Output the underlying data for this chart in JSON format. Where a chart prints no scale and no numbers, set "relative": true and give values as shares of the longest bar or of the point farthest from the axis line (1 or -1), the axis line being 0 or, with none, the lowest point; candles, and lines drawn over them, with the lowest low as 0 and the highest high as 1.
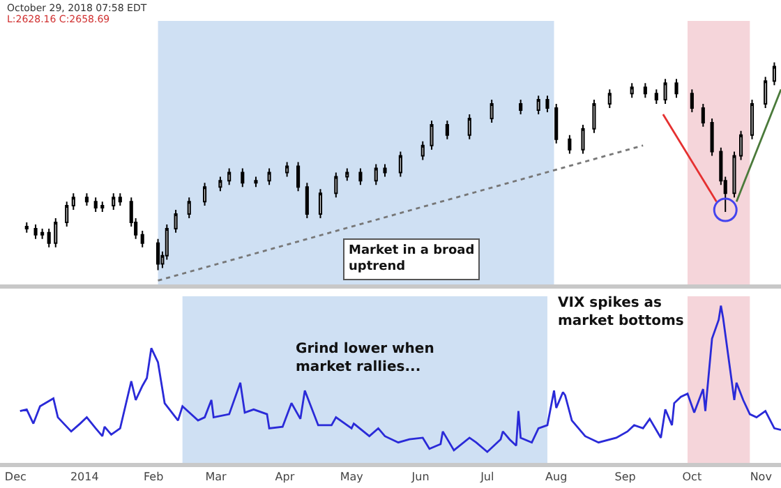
{
  "chart_data": [
    {
      "type": "candlestick",
      "relative": true,
      "color": "#000000",
      "tick_labels": false,
      "xlim": [
        "2013-11-24",
        "2014-11-10"
      ],
      "x": [
        "2013-12-06",
        "2013-12-10",
        "2013-12-13",
        "2013-12-16",
        "2013-12-19",
        "2013-12-24",
        "2013-12-27",
        "2014-01-02",
        "2014-01-06",
        "2014-01-09",
        "2014-01-14",
        "2014-01-17",
        "2014-01-22",
        "2014-01-24",
        "2014-01-27",
        "2014-02-03",
        "2014-02-05",
        "2014-02-07",
        "2014-02-11",
        "2014-02-17",
        "2014-02-24",
        "2014-03-03",
        "2014-03-07",
        "2014-03-13",
        "2014-03-19",
        "2014-03-25",
        "2014-04-02",
        "2014-04-07",
        "2014-04-11",
        "2014-04-17",
        "2014-04-24",
        "2014-04-29",
        "2014-05-05",
        "2014-05-12",
        "2014-05-16",
        "2014-05-23",
        "2014-06-02",
        "2014-06-06",
        "2014-06-13",
        "2014-06-23",
        "2014-07-03",
        "2014-07-16",
        "2014-07-24",
        "2014-07-28",
        "2014-08-01",
        "2014-08-07",
        "2014-08-13",
        "2014-08-18",
        "2014-08-25",
        "2014-09-04",
        "2014-09-10",
        "2014-09-15",
        "2014-09-19",
        "2014-09-24",
        "2014-10-01",
        "2014-10-06",
        "2014-10-10",
        "2014-10-14",
        "2014-10-16",
        "2014-10-20",
        "2014-10-23",
        "2014-10-28",
        "2014-11-03",
        "2014-11-07"
      ],
      "ohlc": [
        [
          0.21,
          0.23,
          0.18,
          0.2
        ],
        [
          0.2,
          0.22,
          0.15,
          0.17
        ],
        [
          0.17,
          0.2,
          0.15,
          0.18
        ],
        [
          0.18,
          0.2,
          0.11,
          0.13
        ],
        [
          0.13,
          0.25,
          0.11,
          0.23
        ],
        [
          0.23,
          0.33,
          0.21,
          0.31
        ],
        [
          0.31,
          0.37,
          0.29,
          0.35
        ],
        [
          0.35,
          0.37,
          0.31,
          0.33
        ],
        [
          0.33,
          0.35,
          0.28,
          0.3
        ],
        [
          0.3,
          0.33,
          0.28,
          0.31
        ],
        [
          0.31,
          0.37,
          0.29,
          0.35
        ],
        [
          0.35,
          0.37,
          0.31,
          0.33
        ],
        [
          0.33,
          0.35,
          0.21,
          0.23
        ],
        [
          0.23,
          0.25,
          0.15,
          0.17
        ],
        [
          0.17,
          0.19,
          0.11,
          0.13
        ],
        [
          0.13,
          0.15,
          0,
          0.03
        ],
        [
          0.03,
          0.09,
          0.01,
          0.07
        ],
        [
          0.07,
          0.22,
          0.05,
          0.2
        ],
        [
          0.2,
          0.29,
          0.18,
          0.27
        ],
        [
          0.27,
          0.35,
          0.25,
          0.33
        ],
        [
          0.33,
          0.42,
          0.31,
          0.4
        ],
        [
          0.4,
          0.45,
          0.38,
          0.43
        ],
        [
          0.43,
          0.49,
          0.41,
          0.47
        ],
        [
          0.47,
          0.49,
          0.4,
          0.42
        ],
        [
          0.42,
          0.45,
          0.4,
          0.43
        ],
        [
          0.43,
          0.49,
          0.41,
          0.47
        ],
        [
          0.47,
          0.52,
          0.45,
          0.5
        ],
        [
          0.5,
          0.52,
          0.38,
          0.4
        ],
        [
          0.4,
          0.42,
          0.25,
          0.27
        ],
        [
          0.27,
          0.39,
          0.25,
          0.37
        ],
        [
          0.37,
          0.47,
          0.35,
          0.45
        ],
        [
          0.45,
          0.49,
          0.43,
          0.47
        ],
        [
          0.47,
          0.49,
          0.41,
          0.43
        ],
        [
          0.43,
          0.51,
          0.41,
          0.49
        ],
        [
          0.49,
          0.51,
          0.45,
          0.47
        ],
        [
          0.47,
          0.57,
          0.45,
          0.55
        ],
        [
          0.55,
          0.62,
          0.53,
          0.6
        ],
        [
          0.6,
          0.72,
          0.58,
          0.7
        ],
        [
          0.7,
          0.72,
          0.63,
          0.65
        ],
        [
          0.65,
          0.75,
          0.63,
          0.73
        ],
        [
          0.73,
          0.82,
          0.71,
          0.8
        ],
        [
          0.8,
          0.82,
          0.75,
          0.77
        ],
        [
          0.77,
          0.84,
          0.75,
          0.82
        ],
        [
          0.82,
          0.84,
          0.76,
          0.78
        ],
        [
          0.78,
          0.8,
          0.61,
          0.63
        ],
        [
          0.63,
          0.65,
          0.56,
          0.58
        ],
        [
          0.58,
          0.7,
          0.56,
          0.68
        ],
        [
          0.68,
          0.82,
          0.66,
          0.8
        ],
        [
          0.8,
          0.87,
          0.78,
          0.85
        ],
        [
          0.85,
          0.9,
          0.83,
          0.88
        ],
        [
          0.88,
          0.9,
          0.83,
          0.85
        ],
        [
          0.85,
          0.87,
          0.8,
          0.82
        ],
        [
          0.82,
          0.92,
          0.8,
          0.9
        ],
        [
          0.9,
          0.92,
          0.83,
          0.85
        ],
        [
          0.85,
          0.87,
          0.76,
          0.78
        ],
        [
          0.78,
          0.8,
          0.69,
          0.71
        ],
        [
          0.71,
          0.73,
          0.55,
          0.57
        ],
        [
          0.57,
          0.59,
          0.41,
          0.43
        ],
        [
          0.43,
          0.45,
          0.28,
          0.37
        ],
        [
          0.37,
          0.57,
          0.35,
          0.55
        ],
        [
          0.55,
          0.67,
          0.53,
          0.65
        ],
        [
          0.65,
          0.82,
          0.63,
          0.8
        ],
        [
          0.8,
          0.93,
          0.78,
          0.91
        ],
        [
          0.91,
          1,
          0.89,
          0.98
        ]
      ],
      "series": [
        {
          "type": "line",
          "color": "#777777",
          "line_style": "dotted",
          "x": [
            "2014-02-03",
            "2014-09-09"
          ],
          "values": [
            -0.05,
            0.6
          ]
        },
        {
          "type": "line",
          "color": "#e53030",
          "line_style": "solid",
          "x": [
            "2014-09-18",
            "2014-10-12"
          ],
          "values": [
            0.75,
            0.33
          ]
        },
        {
          "type": "line",
          "color": "#4a7a3a",
          "line_style": "solid",
          "x": [
            "2014-10-21",
            "2014-11-10"
          ],
          "values": [
            0.33,
            0.87
          ]
        },
        {
          "type": "scatter",
          "color": "#4444ee",
          "marker": "circle",
          "x": [
            "2014-10-16"
          ],
          "values": [
            0.29
          ]
        }
      ],
      "bands": [
        {
          "axis": "x",
          "from": "2014-02-03",
          "to": "2014-07-31",
          "color": "#cfe0f3"
        },
        {
          "axis": "x",
          "from": "2014-09-29",
          "to": "2014-10-27",
          "color": "#f5d5da"
        }
      ],
      "annotations": [
        "October 29, 2018 07:58 EDT",
        "L:2628.16 C:2658.69",
        "Market in a broad\nuptrend"
      ]
    },
    {
      "type": "line",
      "relative": true,
      "tick_labels": "x",
      "xlim": [
        "2013-11-24",
        "2014-11-10"
      ],
      "xticks": [
        {
          "value": "2013-12-01",
          "label": "Dec"
        },
        {
          "value": "2014-01-01",
          "label": "2014"
        },
        {
          "value": "2014-02-01",
          "label": "Feb"
        },
        {
          "value": "2014-03-01",
          "label": "Mar"
        },
        {
          "value": "2014-04-01",
          "label": "Apr"
        },
        {
          "value": "2014-05-01",
          "label": "May"
        },
        {
          "value": "2014-06-01",
          "label": "Jun"
        },
        {
          "value": "2014-07-01",
          "label": "Jul"
        },
        {
          "value": "2014-08-01",
          "label": "Aug"
        },
        {
          "value": "2014-09-01",
          "label": "Sep"
        },
        {
          "value": "2014-10-01",
          "label": "Oct"
        },
        {
          "value": "2014-11-01",
          "label": "Nov"
        }
      ],
      "series": [
        {
          "color": "#2a2ad8",
          "x": [
            "2013-12-03",
            "2013-12-06",
            "2013-12-09",
            "2013-12-12",
            "2013-12-18",
            "2013-12-20",
            "2013-12-26",
            "2013-12-30",
            "2014-01-02",
            "2014-01-06",
            "2014-01-09",
            "2014-01-10",
            "2014-01-13",
            "2014-01-17",
            "2014-01-22",
            "2014-01-24",
            "2014-01-27",
            "2014-01-29",
            "2014-01-31",
            "2014-02-03",
            "2014-02-06",
            "2014-02-12",
            "2014-02-14",
            "2014-02-21",
            "2014-02-24",
            "2014-02-27",
            "2014-02-28",
            "2014-03-07",
            "2014-03-12",
            "2014-03-14",
            "2014-03-18",
            "2014-03-24",
            "2014-03-25",
            "2014-03-31",
            "2014-04-04",
            "2014-04-08",
            "2014-04-10",
            "2014-04-16",
            "2014-04-22",
            "2014-04-24",
            "2014-05-01",
            "2014-05-02",
            "2014-05-09",
            "2014-05-13",
            "2014-05-16",
            "2014-05-22",
            "2014-05-27",
            "2014-06-02",
            "2014-06-05",
            "2014-06-10",
            "2014-06-11",
            "2014-06-16",
            "2014-06-23",
            "2014-06-26",
            "2014-07-01",
            "2014-07-07",
            "2014-07-08",
            "2014-07-11",
            "2014-07-14",
            "2014-07-15",
            "2014-07-16",
            "2014-07-21",
            "2014-07-24",
            "2014-07-28",
            "2014-07-31",
            "2014-08-01",
            "2014-08-04",
            "2014-08-05",
            "2014-08-08",
            "2014-08-14",
            "2014-08-20",
            "2014-08-28",
            "2014-09-02",
            "2014-09-05",
            "2014-09-09",
            "2014-09-12",
            "2014-09-17",
            "2014-09-19",
            "2014-09-22",
            "2014-09-23",
            "2014-09-26",
            "2014-09-29",
            "2014-10-02",
            "2014-10-06",
            "2014-10-07",
            "2014-10-10",
            "2014-10-13",
            "2014-10-14",
            "2014-10-15",
            "2014-10-20",
            "2014-10-21",
            "2014-10-24",
            "2014-10-27",
            "2014-10-30",
            "2014-11-03",
            "2014-11-07",
            "2014-11-10"
          ],
          "values": [
            0.33,
            0.34,
            0.25,
            0.36,
            0.41,
            0.29,
            0.2,
            0.25,
            0.29,
            0.22,
            0.17,
            0.23,
            0.18,
            0.22,
            0.52,
            0.4,
            0.49,
            0.54,
            0.73,
            0.64,
            0.38,
            0.27,
            0.36,
            0.27,
            0.29,
            0.4,
            0.29,
            0.31,
            0.51,
            0.32,
            0.34,
            0.31,
            0.22,
            0.23,
            0.38,
            0.28,
            0.46,
            0.24,
            0.24,
            0.29,
            0.22,
            0.25,
            0.17,
            0.22,
            0.17,
            0.13,
            0.15,
            0.16,
            0.09,
            0.12,
            0.2,
            0.08,
            0.16,
            0.13,
            0.07,
            0.15,
            0.2,
            0.15,
            0.11,
            0.33,
            0.16,
            0.13,
            0.22,
            0.24,
            0.46,
            0.35,
            0.45,
            0.43,
            0.27,
            0.17,
            0.13,
            0.16,
            0.2,
            0.24,
            0.22,
            0.28,
            0.16,
            0.34,
            0.24,
            0.38,
            0.42,
            0.44,
            0.32,
            0.47,
            0.33,
            0.79,
            0.91,
            1,
            0.92,
            0.4,
            0.51,
            0.4,
            0.31,
            0.29,
            0.33,
            0.22,
            0.21
          ]
        }
      ],
      "bands": [
        {
          "axis": "x",
          "from": "2014-02-14",
          "to": "2014-07-28",
          "color": "#cfe0f3"
        },
        {
          "axis": "x",
          "from": "2014-09-29",
          "to": "2014-10-27",
          "color": "#f5d5da"
        }
      ],
      "annotations": [
        "Grind lower when\nmarket rallies...",
        "VIX spikes as\nmarket bottoms"
      ]
    }
  ]
}
